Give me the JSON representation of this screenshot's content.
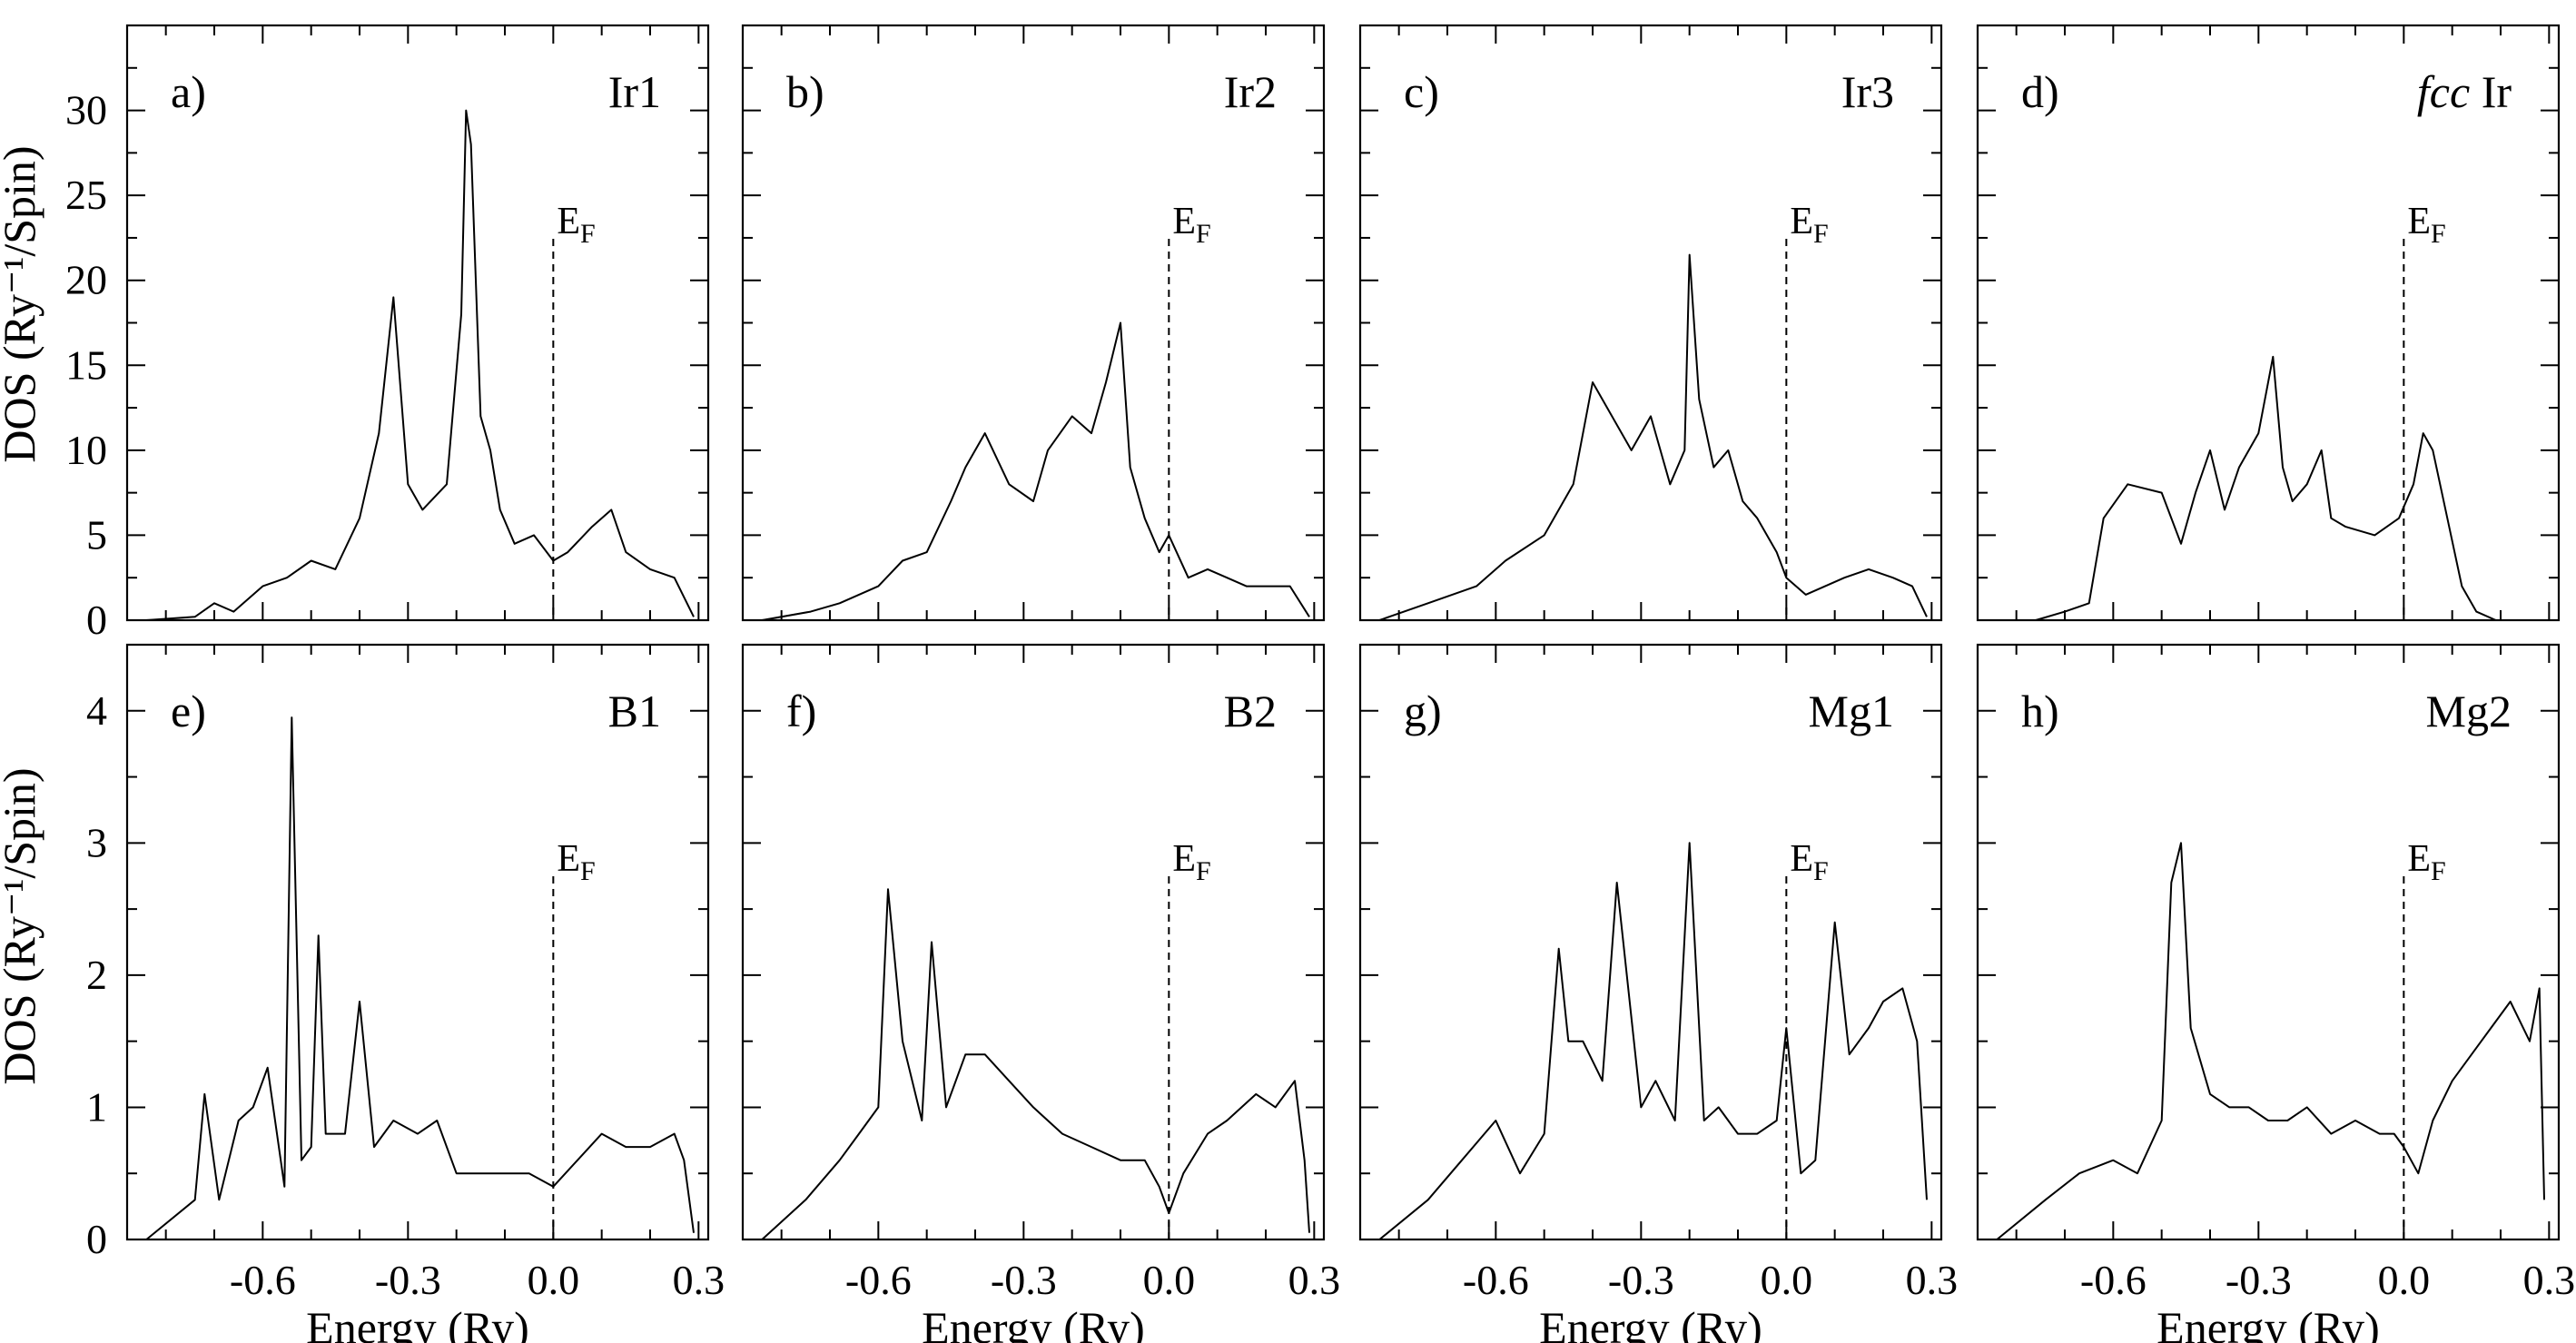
{
  "chart_data": {
    "type": "line",
    "x_label": "Energy (Ry)",
    "x_ticks": [
      -0.6,
      -0.3,
      0.0,
      0.3
    ],
    "x_tick_labels": [
      "-0.6",
      "-0.3",
      "0.0",
      "0.3"
    ],
    "xlim": [
      -0.88,
      0.32
    ],
    "fermi_level": 0.0,
    "fermi_label": "E",
    "fermi_subscript": "F",
    "rows": [
      {
        "ylabel": "DOS (Ry⁻¹/Spin)",
        "ylim": [
          0,
          35
        ],
        "y_ticks": [
          0,
          5,
          10,
          15,
          20,
          25,
          30
        ],
        "y_tick_labels": [
          "0",
          "5",
          "10",
          "15",
          "20",
          "25",
          "30"
        ]
      },
      {
        "ylabel": "DOS (Ry⁻¹/Spin)",
        "ylim": [
          0,
          4.5
        ],
        "y_ticks": [
          0,
          1,
          2,
          3,
          4
        ],
        "y_tick_labels": [
          "0",
          "1",
          "2",
          "3",
          "4"
        ]
      }
    ],
    "panels": [
      {
        "letter": "a)",
        "title": "Ir1",
        "title_style": "normal",
        "row": 0,
        "col": 0,
        "series": {
          "x": [
            -0.84,
            -0.74,
            -0.7,
            -0.66,
            -0.6,
            -0.55,
            -0.5,
            -0.45,
            -0.4,
            -0.36,
            -0.33,
            -0.3,
            -0.27,
            -0.22,
            -0.19,
            -0.18,
            -0.17,
            -0.15,
            -0.13,
            -0.11,
            -0.08,
            -0.04,
            0.0,
            0.03,
            0.08,
            0.12,
            0.15,
            0.2,
            0.25,
            0.29
          ],
          "y": [
            0.0,
            0.2,
            1.0,
            0.5,
            2.0,
            2.5,
            3.5,
            3.0,
            6.0,
            11.0,
            19.0,
            8.0,
            6.5,
            8.0,
            18.0,
            30.0,
            28.0,
            12.0,
            10.0,
            6.5,
            4.5,
            5.0,
            3.5,
            4.0,
            5.5,
            6.5,
            4.0,
            3.0,
            2.5,
            0.2
          ]
        }
      },
      {
        "letter": "b)",
        "title": "Ir2",
        "title_style": "normal",
        "row": 0,
        "col": 1,
        "series": {
          "x": [
            -0.84,
            -0.74,
            -0.68,
            -0.6,
            -0.55,
            -0.5,
            -0.45,
            -0.42,
            -0.38,
            -0.33,
            -0.28,
            -0.25,
            -0.2,
            -0.16,
            -0.13,
            -0.1,
            -0.08,
            -0.05,
            -0.02,
            0.0,
            0.04,
            0.08,
            0.12,
            0.16,
            0.2,
            0.25,
            0.29
          ],
          "y": [
            0.0,
            0.5,
            1.0,
            2.0,
            3.5,
            4.0,
            7.0,
            9.0,
            11.0,
            8.0,
            7.0,
            10.0,
            12.0,
            11.0,
            14.0,
            17.5,
            9.0,
            6.0,
            4.0,
            5.0,
            2.5,
            3.0,
            2.5,
            2.0,
            2.0,
            2.0,
            0.2
          ]
        }
      },
      {
        "letter": "c)",
        "title": "Ir3",
        "title_style": "normal",
        "row": 0,
        "col": 2,
        "series": {
          "x": [
            -0.84,
            -0.74,
            -0.64,
            -0.58,
            -0.5,
            -0.44,
            -0.4,
            -0.36,
            -0.32,
            -0.28,
            -0.24,
            -0.21,
            -0.2,
            -0.18,
            -0.15,
            -0.12,
            -0.09,
            -0.06,
            -0.02,
            0.0,
            0.04,
            0.08,
            0.12,
            0.17,
            0.22,
            0.26,
            0.29
          ],
          "y": [
            0.0,
            1.0,
            2.0,
            3.5,
            5.0,
            8.0,
            14.0,
            12.0,
            10.0,
            12.0,
            8.0,
            10.0,
            21.5,
            13.0,
            9.0,
            10.0,
            7.0,
            6.0,
            4.0,
            2.5,
            1.5,
            2.0,
            2.5,
            3.0,
            2.5,
            2.0,
            0.2
          ]
        }
      },
      {
        "letter": "d)",
        "title": "fcc Ir",
        "title_style": "fcc-italic",
        "row": 0,
        "col": 3,
        "series": {
          "x": [
            -0.76,
            -0.7,
            -0.65,
            -0.62,
            -0.57,
            -0.5,
            -0.46,
            -0.43,
            -0.4,
            -0.37,
            -0.34,
            -0.3,
            -0.27,
            -0.25,
            -0.23,
            -0.2,
            -0.17,
            -0.15,
            -0.12,
            -0.06,
            -0.01,
            0.02,
            0.04,
            0.06,
            0.09,
            0.12,
            0.15,
            0.19
          ],
          "y": [
            0.0,
            0.5,
            1.0,
            6.0,
            8.0,
            7.5,
            4.5,
            7.5,
            10.0,
            6.5,
            9.0,
            11.0,
            15.5,
            9.0,
            7.0,
            8.0,
            10.0,
            6.0,
            5.5,
            5.0,
            6.0,
            8.0,
            11.0,
            10.0,
            6.0,
            2.0,
            0.5,
            0.0
          ]
        }
      },
      {
        "letter": "e)",
        "title": "B1",
        "title_style": "normal",
        "row": 1,
        "col": 0,
        "series": {
          "x": [
            -0.84,
            -0.74,
            -0.72,
            -0.69,
            -0.65,
            -0.62,
            -0.59,
            -0.555,
            -0.54,
            -0.52,
            -0.5,
            -0.485,
            -0.47,
            -0.43,
            -0.4,
            -0.37,
            -0.33,
            -0.28,
            -0.24,
            -0.2,
            -0.15,
            -0.1,
            -0.05,
            0.0,
            0.05,
            0.1,
            0.15,
            0.2,
            0.25,
            0.27,
            0.29
          ],
          "y": [
            0.0,
            0.3,
            1.1,
            0.3,
            0.9,
            1.0,
            1.3,
            0.4,
            3.95,
            0.6,
            0.7,
            2.3,
            0.8,
            0.8,
            1.8,
            0.7,
            0.9,
            0.8,
            0.9,
            0.5,
            0.5,
            0.5,
            0.5,
            0.4,
            0.6,
            0.8,
            0.7,
            0.7,
            0.8,
            0.6,
            0.05
          ]
        }
      },
      {
        "letter": "f)",
        "title": "B2",
        "title_style": "normal",
        "row": 1,
        "col": 1,
        "series": {
          "x": [
            -0.84,
            -0.75,
            -0.68,
            -0.64,
            -0.6,
            -0.58,
            -0.55,
            -0.51,
            -0.49,
            -0.46,
            -0.42,
            -0.38,
            -0.33,
            -0.28,
            -0.22,
            -0.16,
            -0.1,
            -0.05,
            -0.02,
            0.0,
            0.03,
            0.08,
            0.12,
            0.18,
            0.22,
            0.26,
            0.28,
            0.29
          ],
          "y": [
            0.0,
            0.3,
            0.6,
            0.8,
            1.0,
            2.65,
            1.5,
            0.9,
            2.25,
            1.0,
            1.4,
            1.4,
            1.2,
            1.0,
            0.8,
            0.7,
            0.6,
            0.6,
            0.4,
            0.2,
            0.5,
            0.8,
            0.9,
            1.1,
            1.0,
            1.2,
            0.6,
            0.05
          ]
        }
      },
      {
        "letter": "g)",
        "title": "Mg1",
        "title_style": "normal",
        "row": 1,
        "col": 2,
        "series": {
          "x": [
            -0.84,
            -0.74,
            -0.67,
            -0.6,
            -0.55,
            -0.5,
            -0.47,
            -0.45,
            -0.42,
            -0.38,
            -0.35,
            -0.3,
            -0.27,
            -0.23,
            -0.2,
            -0.17,
            -0.14,
            -0.1,
            -0.06,
            -0.02,
            0.0,
            0.03,
            0.06,
            0.1,
            0.13,
            0.17,
            0.2,
            0.24,
            0.27,
            0.29
          ],
          "y": [
            0.0,
            0.3,
            0.6,
            0.9,
            0.5,
            0.8,
            2.2,
            1.5,
            1.5,
            1.2,
            2.7,
            1.0,
            1.2,
            0.9,
            3.0,
            0.9,
            1.0,
            0.8,
            0.8,
            0.9,
            1.6,
            0.5,
            0.6,
            2.4,
            1.4,
            1.6,
            1.8,
            1.9,
            1.5,
            0.3
          ]
        }
      },
      {
        "letter": "h)",
        "title": "Mg2",
        "title_style": "normal",
        "row": 1,
        "col": 3,
        "series": {
          "x": [
            -0.84,
            -0.74,
            -0.67,
            -0.6,
            -0.55,
            -0.5,
            -0.48,
            -0.46,
            -0.44,
            -0.4,
            -0.36,
            -0.32,
            -0.28,
            -0.24,
            -0.2,
            -0.15,
            -0.1,
            -0.05,
            -0.02,
            0.0,
            0.03,
            0.06,
            0.1,
            0.14,
            0.18,
            0.22,
            0.26,
            0.28,
            0.29
          ],
          "y": [
            0.0,
            0.3,
            0.5,
            0.6,
            0.5,
            0.9,
            2.7,
            3.0,
            1.6,
            1.1,
            1.0,
            1.0,
            0.9,
            0.9,
            1.0,
            0.8,
            0.9,
            0.8,
            0.8,
            0.7,
            0.5,
            0.9,
            1.2,
            1.4,
            1.6,
            1.8,
            1.5,
            1.9,
            0.3
          ]
        }
      }
    ]
  }
}
